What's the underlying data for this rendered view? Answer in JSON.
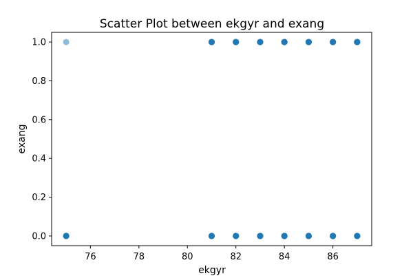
{
  "chart_data": {
    "type": "scatter",
    "title": "Scatter Plot between ekgyr and exang",
    "xlabel": "ekgyr",
    "ylabel": "exang",
    "xlim": [
      74.4,
      87.6
    ],
    "ylim": [
      -0.05,
      1.05
    ],
    "x_ticks": [
      76,
      78,
      80,
      82,
      84,
      86
    ],
    "x_tick_labels": [
      "76",
      "78",
      "80",
      "82",
      "84",
      "86"
    ],
    "y_ticks": [
      0.0,
      0.2,
      0.4,
      0.6,
      0.8,
      1.0
    ],
    "y_tick_labels": [
      "0.0",
      "0.2",
      "0.4",
      "0.6",
      "0.8",
      "1.0"
    ],
    "grid": false,
    "marker_color": "#1f77b4",
    "marker_alpha": 0.5,
    "points": [
      {
        "x": 75,
        "y": 1,
        "count": 1
      },
      {
        "x": 75,
        "y": 0,
        "count": 8
      },
      {
        "x": 81,
        "y": 1,
        "count": 8
      },
      {
        "x": 81,
        "y": 0,
        "count": 8
      },
      {
        "x": 82,
        "y": 1,
        "count": 8
      },
      {
        "x": 82,
        "y": 0,
        "count": 8
      },
      {
        "x": 83,
        "y": 1,
        "count": 8
      },
      {
        "x": 83,
        "y": 0,
        "count": 8
      },
      {
        "x": 84,
        "y": 1,
        "count": 8
      },
      {
        "x": 84,
        "y": 0,
        "count": 8
      },
      {
        "x": 85,
        "y": 1,
        "count": 8
      },
      {
        "x": 85,
        "y": 0,
        "count": 8
      },
      {
        "x": 86,
        "y": 1,
        "count": 8
      },
      {
        "x": 86,
        "y": 0,
        "count": 8
      },
      {
        "x": 87,
        "y": 1,
        "count": 8
      },
      {
        "x": 87,
        "y": 0,
        "count": 8
      }
    ]
  }
}
